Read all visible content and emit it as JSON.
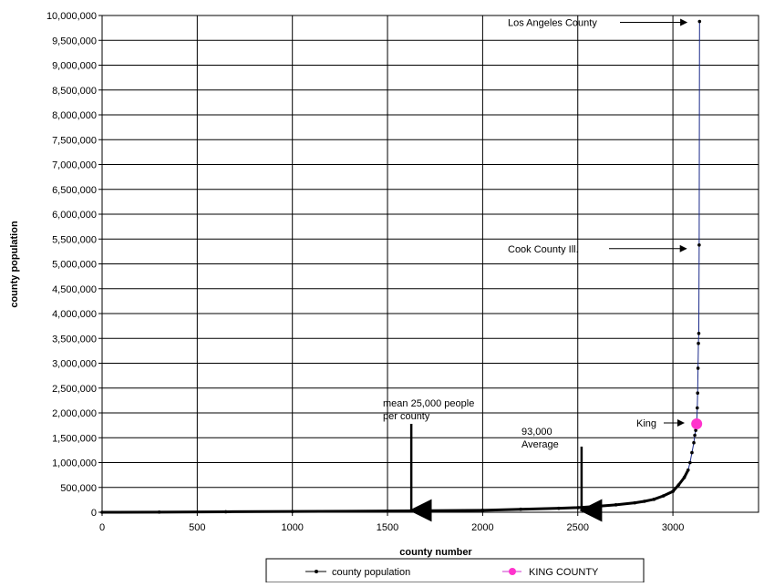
{
  "chart_data": {
    "type": "scatter",
    "xlabel": "county number",
    "ylabel": "county population",
    "xlim": [
      0,
      3450
    ],
    "ylim": [
      0,
      10000000
    ],
    "x_ticks": [
      0,
      500,
      1000,
      1500,
      2000,
      2500,
      3000
    ],
    "x_tick_labels": [
      "0",
      "500",
      "1000",
      "1500",
      "2000",
      "2500",
      "3000"
    ],
    "y_ticks": [
      0,
      500000,
      1000000,
      1500000,
      2000000,
      2500000,
      3000000,
      3500000,
      4000000,
      4500000,
      5000000,
      5500000,
      6000000,
      6500000,
      7000000,
      7500000,
      8000000,
      8500000,
      9000000,
      9500000,
      10000000
    ],
    "y_tick_labels": [
      "0",
      "500,000",
      "1,000,000",
      "1,500,000",
      "2,000,000",
      "2,500,000",
      "3,000,000",
      "3,500,000",
      "4,000,000",
      "4,500,000",
      "5,000,000",
      "5,500,000",
      "6,000,000",
      "6,500,000",
      "7,000,000",
      "7,500,000",
      "8,000,000",
      "8,500,000",
      "9,000,000",
      "9,500,000",
      "10,000,000"
    ],
    "grid": true,
    "legend_position": "bottom",
    "series": [
      {
        "name": "county population",
        "color": "#000000",
        "line_color": "#1a2a8a",
        "x": [
          0,
          300,
          650,
          1000,
          1500,
          2000,
          2200,
          2400,
          2500,
          2600,
          2700,
          2800,
          2850,
          2900,
          2950,
          3000,
          3030,
          3060,
          3080,
          3090,
          3100,
          3110,
          3115,
          3120,
          3125,
          3128,
          3130,
          3132,
          3134,
          3136,
          3138,
          3140
        ],
        "y": [
          0,
          3000,
          10000,
          15000,
          25000,
          40000,
          60000,
          80000,
          93000,
          120000,
          150000,
          190000,
          220000,
          260000,
          330000,
          420000,
          550000,
          700000,
          850000,
          1000000,
          1200000,
          1400000,
          1550000,
          1650000,
          1800000,
          2100000,
          2400000,
          2900000,
          3400000,
          3600000,
          5380000,
          9880000
        ]
      },
      {
        "name": "KING COUNTY",
        "color": "#ff33cc",
        "x": [
          3125
        ],
        "y": [
          1780000
        ]
      }
    ],
    "annotations": [
      {
        "id": "la",
        "text": "Los Angeles County",
        "x": 3140,
        "y": 9880000
      },
      {
        "id": "cook",
        "text": "Cook County Ill.",
        "x": 3138,
        "y": 5380000
      },
      {
        "id": "king",
        "text": "King",
        "x": 3125,
        "y": 1780000
      },
      {
        "id": "mean",
        "text": [
          "mean 25,000 people",
          "per county"
        ],
        "x": 1625,
        "y": 0
      },
      {
        "id": "avg",
        "text": [
          "93,000",
          "Average"
        ],
        "x": 2520,
        "y": 0
      }
    ]
  }
}
